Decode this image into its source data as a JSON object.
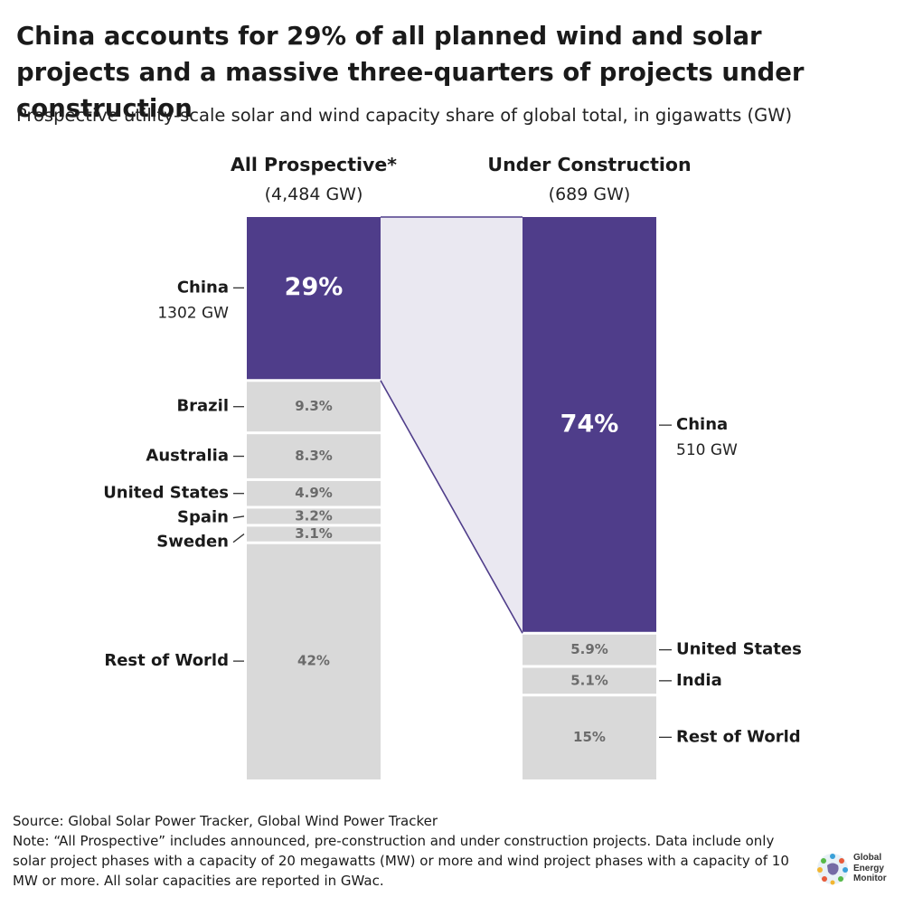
{
  "title": "China accounts for 29% of all planned wind and solar projects and a massive three-quarters of projects under construction",
  "subtitle": "Prospective utility-scale solar and wind capacity share of global total, in gigawatts (GW)",
  "colors": {
    "china": "#4f3d8a",
    "other": "#d9d9d9",
    "connector_fill": "#eae8f1",
    "connector_line": "#4f3d8a"
  },
  "chart_data": {
    "type": "bar",
    "stacked": true,
    "columns": [
      {
        "heading": "All Prospective*",
        "total_label": "(4,484 GW)",
        "segments": [
          {
            "name": "China",
            "share": 29,
            "value_label": "29%",
            "gw_label": "1302 GW"
          },
          {
            "name": "Brazil",
            "share": 9.3,
            "value_label": "9.3%"
          },
          {
            "name": "Australia",
            "share": 8.3,
            "value_label": "8.3%"
          },
          {
            "name": "United States",
            "share": 4.9,
            "value_label": "4.9%"
          },
          {
            "name": "Spain",
            "share": 3.2,
            "value_label": "3.2%"
          },
          {
            "name": "Sweden",
            "share": 3.1,
            "value_label": "3.1%"
          },
          {
            "name": "Rest of World",
            "share": 42,
            "value_label": "42%"
          }
        ]
      },
      {
        "heading": "Under Construction",
        "total_label": "(689 GW)",
        "segments": [
          {
            "name": "China",
            "share": 74,
            "value_label": "74%",
            "gw_label": "510 GW"
          },
          {
            "name": "United States",
            "share": 5.9,
            "value_label": "5.9%"
          },
          {
            "name": "India",
            "share": 5.1,
            "value_label": "5.1%"
          },
          {
            "name": "Rest of World",
            "share": 15,
            "value_label": "15%"
          }
        ]
      }
    ]
  },
  "footer": {
    "source": "Source: Global Solar Power Tracker, Global Wind Power Tracker",
    "note": "Note: “All Prospective” includes announced, pre-construction and under construction projects. Data include only solar project phases with a capacity of 20 megawatts (MW) or more and wind project phases with a capacity of 10 MW or more. All solar capacities are reported in GWac."
  },
  "logo": {
    "line1": "Global",
    "line2": "Energy",
    "line3": "Monitor"
  }
}
